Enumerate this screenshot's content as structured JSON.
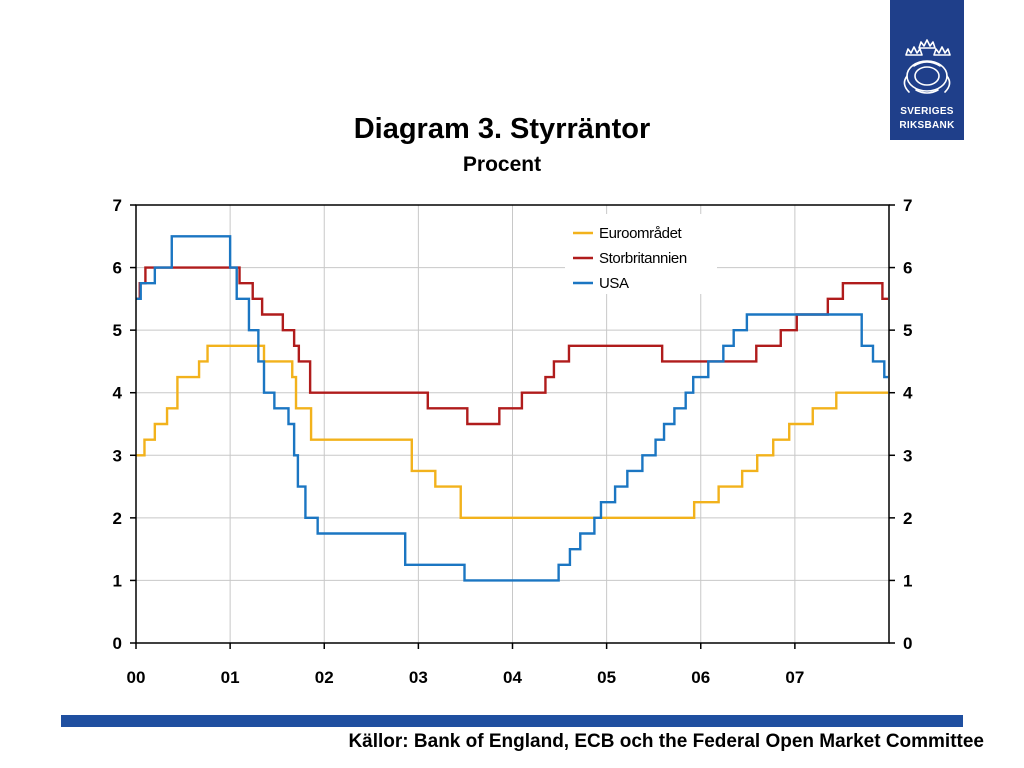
{
  "logo": {
    "line1": "SVERIGES",
    "line2": "RIKSBANK",
    "color": "#1f3f8a"
  },
  "source": "Källor: Bank of England, ECB och the Federal Open Market Committee",
  "chart_data": {
    "type": "line",
    "title": "Diagram 3. Styrräntor",
    "subtitle": "Procent",
    "xlim": [
      2000,
      2008
    ],
    "ylim": [
      0,
      7
    ],
    "yticks": [
      0,
      1,
      2,
      3,
      4,
      5,
      6,
      7
    ],
    "xtick_labels": [
      "00",
      "01",
      "02",
      "03",
      "04",
      "05",
      "06",
      "07"
    ],
    "grid": true,
    "legend": "top-center",
    "series": [
      {
        "name": "Euroområdet",
        "color": "#f2b21c",
        "points": [
          [
            2000.0,
            3.0
          ],
          [
            2000.09,
            3.25
          ],
          [
            2000.2,
            3.5
          ],
          [
            2000.33,
            3.75
          ],
          [
            2000.44,
            4.25
          ],
          [
            2000.67,
            4.5
          ],
          [
            2000.76,
            4.75
          ],
          [
            2001.36,
            4.5
          ],
          [
            2001.66,
            4.25
          ],
          [
            2001.7,
            3.75
          ],
          [
            2001.86,
            3.25
          ],
          [
            2002.93,
            2.75
          ],
          [
            2003.18,
            2.5
          ],
          [
            2003.45,
            2.0
          ],
          [
            2005.93,
            2.25
          ],
          [
            2006.19,
            2.5
          ],
          [
            2006.44,
            2.75
          ],
          [
            2006.6,
            3.0
          ],
          [
            2006.77,
            3.25
          ],
          [
            2006.94,
            3.5
          ],
          [
            2007.19,
            3.75
          ],
          [
            2007.44,
            4.0
          ],
          [
            2007.99,
            4.0
          ]
        ]
      },
      {
        "name": "Storbritannien",
        "color": "#b01c1c",
        "points": [
          [
            2000.0,
            5.5
          ],
          [
            2000.04,
            5.75
          ],
          [
            2000.1,
            6.0
          ],
          [
            2001.1,
            5.75
          ],
          [
            2001.24,
            5.5
          ],
          [
            2001.34,
            5.25
          ],
          [
            2001.56,
            5.0
          ],
          [
            2001.68,
            4.75
          ],
          [
            2001.73,
            4.5
          ],
          [
            2001.85,
            4.0
          ],
          [
            2003.1,
            3.75
          ],
          [
            2003.52,
            3.5
          ],
          [
            2003.86,
            3.75
          ],
          [
            2004.1,
            4.0
          ],
          [
            2004.35,
            4.25
          ],
          [
            2004.44,
            4.5
          ],
          [
            2004.6,
            4.75
          ],
          [
            2005.59,
            4.5
          ],
          [
            2006.59,
            4.75
          ],
          [
            2006.85,
            5.0
          ],
          [
            2007.02,
            5.25
          ],
          [
            2007.35,
            5.5
          ],
          [
            2007.51,
            5.75
          ],
          [
            2007.93,
            5.5
          ],
          [
            2007.99,
            5.5
          ]
        ]
      },
      {
        "name": "USA",
        "color": "#1b76c2",
        "points": [
          [
            2000.0,
            5.5
          ],
          [
            2000.05,
            5.75
          ],
          [
            2000.2,
            6.0
          ],
          [
            2000.38,
            6.5
          ],
          [
            2001.0,
            6.0
          ],
          [
            2001.07,
            5.5
          ],
          [
            2001.2,
            5.0
          ],
          [
            2001.3,
            4.5
          ],
          [
            2001.36,
            4.0
          ],
          [
            2001.47,
            3.75
          ],
          [
            2001.62,
            3.5
          ],
          [
            2001.68,
            3.0
          ],
          [
            2001.72,
            2.5
          ],
          [
            2001.8,
            2.0
          ],
          [
            2001.93,
            1.75
          ],
          [
            2002.86,
            1.25
          ],
          [
            2003.49,
            1.0
          ],
          [
            2004.49,
            1.25
          ],
          [
            2004.61,
            1.5
          ],
          [
            2004.72,
            1.75
          ],
          [
            2004.87,
            2.0
          ],
          [
            2004.94,
            2.25
          ],
          [
            2005.09,
            2.5
          ],
          [
            2005.22,
            2.75
          ],
          [
            2005.38,
            3.0
          ],
          [
            2005.52,
            3.25
          ],
          [
            2005.61,
            3.5
          ],
          [
            2005.72,
            3.75
          ],
          [
            2005.84,
            4.0
          ],
          [
            2005.92,
            4.25
          ],
          [
            2006.08,
            4.5
          ],
          [
            2006.24,
            4.75
          ],
          [
            2006.35,
            5.0
          ],
          [
            2006.49,
            5.25
          ],
          [
            2007.71,
            4.75
          ],
          [
            2007.83,
            4.5
          ],
          [
            2007.95,
            4.25
          ],
          [
            2007.99,
            4.25
          ]
        ]
      }
    ]
  }
}
